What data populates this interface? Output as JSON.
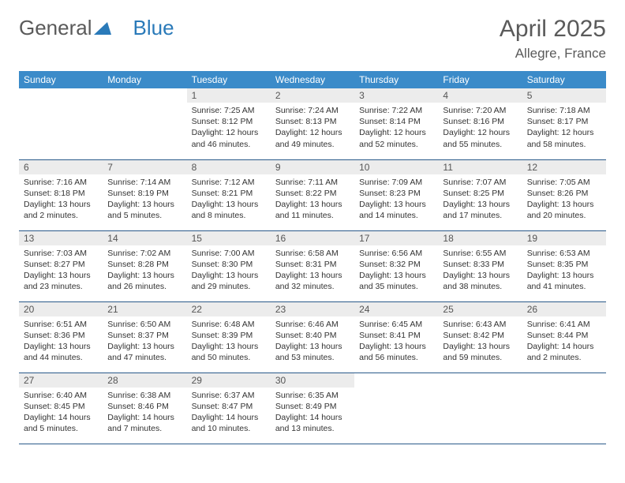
{
  "brand": {
    "part1": "General",
    "part2": "Blue"
  },
  "title": "April 2025",
  "location": "Allegre, France",
  "colors": {
    "header_bg": "#3b8bc9",
    "header_text": "#ffffff",
    "daynum_bg": "#ececec",
    "border": "#2a5a8a",
    "text": "#333333",
    "title_text": "#5a5a5a"
  },
  "weekdays": [
    "Sunday",
    "Monday",
    "Tuesday",
    "Wednesday",
    "Thursday",
    "Friday",
    "Saturday"
  ],
  "weeks": [
    [
      null,
      null,
      {
        "d": "1",
        "sr": "Sunrise: 7:25 AM",
        "ss": "Sunset: 8:12 PM",
        "dl1": "Daylight: 12 hours",
        "dl2": "and 46 minutes."
      },
      {
        "d": "2",
        "sr": "Sunrise: 7:24 AM",
        "ss": "Sunset: 8:13 PM",
        "dl1": "Daylight: 12 hours",
        "dl2": "and 49 minutes."
      },
      {
        "d": "3",
        "sr": "Sunrise: 7:22 AM",
        "ss": "Sunset: 8:14 PM",
        "dl1": "Daylight: 12 hours",
        "dl2": "and 52 minutes."
      },
      {
        "d": "4",
        "sr": "Sunrise: 7:20 AM",
        "ss": "Sunset: 8:16 PM",
        "dl1": "Daylight: 12 hours",
        "dl2": "and 55 minutes."
      },
      {
        "d": "5",
        "sr": "Sunrise: 7:18 AM",
        "ss": "Sunset: 8:17 PM",
        "dl1": "Daylight: 12 hours",
        "dl2": "and 58 minutes."
      }
    ],
    [
      {
        "d": "6",
        "sr": "Sunrise: 7:16 AM",
        "ss": "Sunset: 8:18 PM",
        "dl1": "Daylight: 13 hours",
        "dl2": "and 2 minutes."
      },
      {
        "d": "7",
        "sr": "Sunrise: 7:14 AM",
        "ss": "Sunset: 8:19 PM",
        "dl1": "Daylight: 13 hours",
        "dl2": "and 5 minutes."
      },
      {
        "d": "8",
        "sr": "Sunrise: 7:12 AM",
        "ss": "Sunset: 8:21 PM",
        "dl1": "Daylight: 13 hours",
        "dl2": "and 8 minutes."
      },
      {
        "d": "9",
        "sr": "Sunrise: 7:11 AM",
        "ss": "Sunset: 8:22 PM",
        "dl1": "Daylight: 13 hours",
        "dl2": "and 11 minutes."
      },
      {
        "d": "10",
        "sr": "Sunrise: 7:09 AM",
        "ss": "Sunset: 8:23 PM",
        "dl1": "Daylight: 13 hours",
        "dl2": "and 14 minutes."
      },
      {
        "d": "11",
        "sr": "Sunrise: 7:07 AM",
        "ss": "Sunset: 8:25 PM",
        "dl1": "Daylight: 13 hours",
        "dl2": "and 17 minutes."
      },
      {
        "d": "12",
        "sr": "Sunrise: 7:05 AM",
        "ss": "Sunset: 8:26 PM",
        "dl1": "Daylight: 13 hours",
        "dl2": "and 20 minutes."
      }
    ],
    [
      {
        "d": "13",
        "sr": "Sunrise: 7:03 AM",
        "ss": "Sunset: 8:27 PM",
        "dl1": "Daylight: 13 hours",
        "dl2": "and 23 minutes."
      },
      {
        "d": "14",
        "sr": "Sunrise: 7:02 AM",
        "ss": "Sunset: 8:28 PM",
        "dl1": "Daylight: 13 hours",
        "dl2": "and 26 minutes."
      },
      {
        "d": "15",
        "sr": "Sunrise: 7:00 AM",
        "ss": "Sunset: 8:30 PM",
        "dl1": "Daylight: 13 hours",
        "dl2": "and 29 minutes."
      },
      {
        "d": "16",
        "sr": "Sunrise: 6:58 AM",
        "ss": "Sunset: 8:31 PM",
        "dl1": "Daylight: 13 hours",
        "dl2": "and 32 minutes."
      },
      {
        "d": "17",
        "sr": "Sunrise: 6:56 AM",
        "ss": "Sunset: 8:32 PM",
        "dl1": "Daylight: 13 hours",
        "dl2": "and 35 minutes."
      },
      {
        "d": "18",
        "sr": "Sunrise: 6:55 AM",
        "ss": "Sunset: 8:33 PM",
        "dl1": "Daylight: 13 hours",
        "dl2": "and 38 minutes."
      },
      {
        "d": "19",
        "sr": "Sunrise: 6:53 AM",
        "ss": "Sunset: 8:35 PM",
        "dl1": "Daylight: 13 hours",
        "dl2": "and 41 minutes."
      }
    ],
    [
      {
        "d": "20",
        "sr": "Sunrise: 6:51 AM",
        "ss": "Sunset: 8:36 PM",
        "dl1": "Daylight: 13 hours",
        "dl2": "and 44 minutes."
      },
      {
        "d": "21",
        "sr": "Sunrise: 6:50 AM",
        "ss": "Sunset: 8:37 PM",
        "dl1": "Daylight: 13 hours",
        "dl2": "and 47 minutes."
      },
      {
        "d": "22",
        "sr": "Sunrise: 6:48 AM",
        "ss": "Sunset: 8:39 PM",
        "dl1": "Daylight: 13 hours",
        "dl2": "and 50 minutes."
      },
      {
        "d": "23",
        "sr": "Sunrise: 6:46 AM",
        "ss": "Sunset: 8:40 PM",
        "dl1": "Daylight: 13 hours",
        "dl2": "and 53 minutes."
      },
      {
        "d": "24",
        "sr": "Sunrise: 6:45 AM",
        "ss": "Sunset: 8:41 PM",
        "dl1": "Daylight: 13 hours",
        "dl2": "and 56 minutes."
      },
      {
        "d": "25",
        "sr": "Sunrise: 6:43 AM",
        "ss": "Sunset: 8:42 PM",
        "dl1": "Daylight: 13 hours",
        "dl2": "and 59 minutes."
      },
      {
        "d": "26",
        "sr": "Sunrise: 6:41 AM",
        "ss": "Sunset: 8:44 PM",
        "dl1": "Daylight: 14 hours",
        "dl2": "and 2 minutes."
      }
    ],
    [
      {
        "d": "27",
        "sr": "Sunrise: 6:40 AM",
        "ss": "Sunset: 8:45 PM",
        "dl1": "Daylight: 14 hours",
        "dl2": "and 5 minutes."
      },
      {
        "d": "28",
        "sr": "Sunrise: 6:38 AM",
        "ss": "Sunset: 8:46 PM",
        "dl1": "Daylight: 14 hours",
        "dl2": "and 7 minutes."
      },
      {
        "d": "29",
        "sr": "Sunrise: 6:37 AM",
        "ss": "Sunset: 8:47 PM",
        "dl1": "Daylight: 14 hours",
        "dl2": "and 10 minutes."
      },
      {
        "d": "30",
        "sr": "Sunrise: 6:35 AM",
        "ss": "Sunset: 8:49 PM",
        "dl1": "Daylight: 14 hours",
        "dl2": "and 13 minutes."
      },
      null,
      null,
      null
    ]
  ]
}
